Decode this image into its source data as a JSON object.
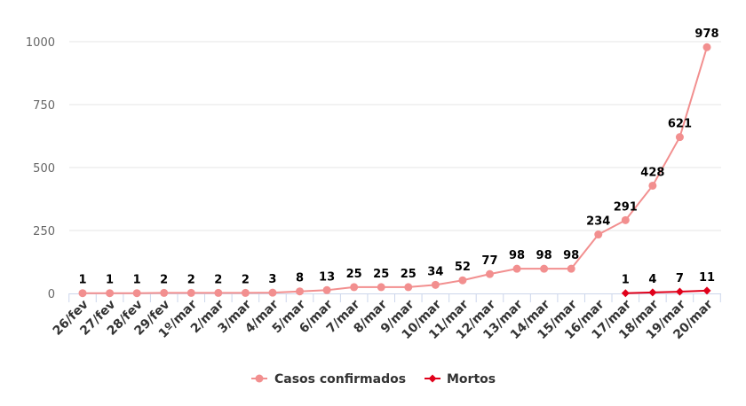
{
  "chart_data": {
    "type": "line",
    "title": "",
    "xlabel": "",
    "ylabel": "",
    "ylim": [
      0,
      1000
    ],
    "yticks": [
      0,
      250,
      500,
      750,
      1000
    ],
    "grid": true,
    "legend_position": "bottom-center",
    "categories": [
      "26/fev",
      "27/fev",
      "28/fev",
      "29/fev",
      "1º/mar",
      "2/mar",
      "3/mar",
      "4/mar",
      "5/mar",
      "6/mar",
      "7/mar",
      "8/mar",
      "9/mar",
      "10/mar",
      "11/mar",
      "12/mar",
      "13/mar",
      "14/mar",
      "15/mar",
      "16/mar",
      "17/mar",
      "18/mar",
      "19/mar",
      "20/mar"
    ],
    "series": [
      {
        "name": "Casos confirmados",
        "color": "#f28f8f",
        "marker": "circle",
        "values": [
          1,
          1,
          1,
          2,
          2,
          2,
          2,
          3,
          8,
          13,
          25,
          25,
          25,
          34,
          52,
          77,
          98,
          98,
          98,
          234,
          291,
          428,
          621,
          978
        ]
      },
      {
        "name": "Mortos",
        "color": "#e0001a",
        "marker": "diamond",
        "values": [
          null,
          null,
          null,
          null,
          null,
          null,
          null,
          null,
          null,
          null,
          null,
          null,
          null,
          null,
          null,
          null,
          null,
          null,
          null,
          null,
          1,
          4,
          7,
          11
        ]
      }
    ]
  }
}
